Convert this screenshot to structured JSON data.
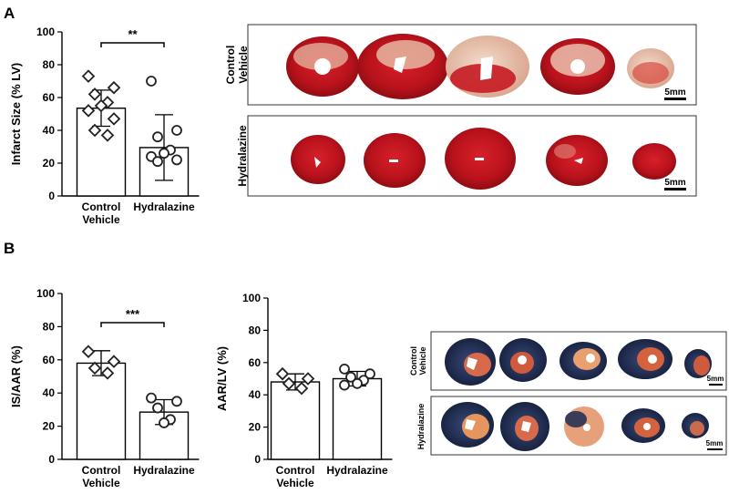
{
  "panels": {
    "a": {
      "letter": "A"
    },
    "b": {
      "letter": "B"
    }
  },
  "chart_data": [
    {
      "type": "bar",
      "panel": "A",
      "ylabel": "Infarct Size (% LV)",
      "ylim": [
        0,
        100
      ],
      "yticks": [
        "0",
        "20",
        "40",
        "60",
        "80",
        "100"
      ],
      "categories": [
        "Control\nVehicle",
        "Hydralazine"
      ],
      "category_lines": [
        [
          "Control",
          "Vehicle"
        ],
        [
          "Hydralazine"
        ]
      ],
      "values": [
        53.5,
        29.5
      ],
      "errors": [
        11,
        20
      ],
      "significance": "**",
      "points": [
        {
          "marker": "diamond",
          "values": [
            73,
            66,
            62,
            57,
            55,
            52,
            47,
            40,
            37
          ]
        },
        {
          "marker": "circle",
          "values": [
            70,
            40,
            36,
            28,
            26,
            24,
            22,
            21
          ]
        }
      ]
    },
    {
      "type": "bar",
      "panel": "B",
      "ylabel": "IS/AAR (%)",
      "ylim": [
        0,
        100
      ],
      "yticks": [
        "0",
        "20",
        "40",
        "60",
        "80",
        "100"
      ],
      "categories": [
        "Control\nVehicle",
        "Hydralazine"
      ],
      "category_lines": [
        [
          "Control",
          "Vehicle"
        ],
        [
          "Hydralazine"
        ]
      ],
      "values": [
        58,
        28.5
      ],
      "errors": [
        7.5,
        7.5
      ],
      "significance": "***",
      "points": [
        {
          "marker": "diamond",
          "values": [
            65,
            59,
            55,
            52
          ]
        },
        {
          "marker": "circle",
          "values": [
            37,
            35,
            31,
            24,
            22
          ]
        }
      ]
    },
    {
      "type": "bar",
      "panel": "B",
      "ylabel": "AAR/LV (%)",
      "ylim": [
        0,
        100
      ],
      "yticks": [
        "0",
        "20",
        "40",
        "60",
        "80",
        "100"
      ],
      "categories": [
        "Control\nVehicle",
        "Hydralazine"
      ],
      "category_lines": [
        [
          "Control",
          "Vehicle"
        ],
        [
          "Hydralazine"
        ]
      ],
      "values": [
        48,
        50
      ],
      "errors": [
        5,
        4.5
      ],
      "significance": "",
      "points": [
        {
          "marker": "diamond",
          "values": [
            53,
            50,
            47,
            44
          ]
        },
        {
          "marker": "circle",
          "values": [
            56,
            53,
            51,
            49,
            47,
            46
          ]
        }
      ]
    }
  ],
  "photos": {
    "a_top": {
      "label_lines": [
        "Control",
        "Vehicle"
      ],
      "scale": "5mm",
      "stain": "TTC"
    },
    "a_bottom": {
      "label_lines": [
        "Hydralazine"
      ],
      "scale": "5mm",
      "stain": "TTC"
    },
    "b_top": {
      "label_lines": [
        "Control",
        "Vehicle"
      ],
      "scale": "5mm",
      "stain": "Evans blue / TTC"
    },
    "b_bottom": {
      "label_lines": [
        "Hydralazine"
      ],
      "scale": "5mm",
      "stain": "Evans blue / TTC"
    }
  },
  "colors": {
    "axis": "#000000",
    "bar_fill": "#ffffff",
    "marker_stroke": "#222222",
    "ttc_red": "#c81e24",
    "ttc_pale": "#e8c9b4",
    "evans_blue": "#1a2a52"
  }
}
